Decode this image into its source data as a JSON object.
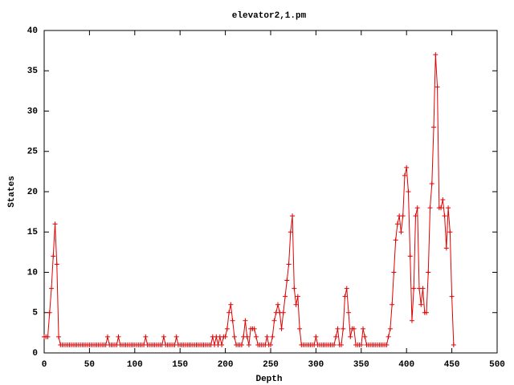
{
  "chart_data": {
    "type": "line",
    "title": "elevator2,1.pm",
    "x_label": "Depth",
    "y_label": "States",
    "x": [
      0,
      2,
      4,
      6,
      8,
      10,
      12,
      14,
      16,
      18,
      20,
      22,
      24,
      26,
      28,
      30,
      32,
      34,
      36,
      38,
      40,
      42,
      44,
      46,
      48,
      50,
      52,
      54,
      56,
      58,
      60,
      62,
      64,
      66,
      68,
      70,
      72,
      74,
      76,
      78,
      80,
      82,
      84,
      86,
      88,
      90,
      92,
      94,
      96,
      98,
      100,
      102,
      104,
      106,
      108,
      110,
      112,
      114,
      116,
      118,
      120,
      122,
      124,
      126,
      128,
      130,
      132,
      134,
      136,
      138,
      140,
      142,
      144,
      146,
      148,
      150,
      152,
      154,
      156,
      158,
      160,
      162,
      164,
      166,
      168,
      170,
      172,
      174,
      176,
      178,
      180,
      182,
      184,
      186,
      188,
      190,
      192,
      194,
      196,
      198,
      200,
      202,
      204,
      206,
      208,
      210,
      212,
      214,
      216,
      218,
      220,
      222,
      224,
      226,
      228,
      230,
      232,
      234,
      236,
      238,
      240,
      242,
      244,
      246,
      248,
      250,
      252,
      254,
      256,
      258,
      260,
      262,
      264,
      266,
      268,
      270,
      272,
      274,
      276,
      278,
      280,
      282,
      284,
      286,
      288,
      290,
      292,
      294,
      296,
      298,
      300,
      302,
      304,
      306,
      308,
      310,
      312,
      314,
      316,
      318,
      320,
      322,
      324,
      326,
      328,
      330,
      332,
      334,
      336,
      338,
      340,
      342,
      344,
      346,
      348,
      350,
      352,
      354,
      356,
      358,
      360,
      362,
      364,
      366,
      368,
      370,
      372,
      374,
      376,
      378,
      380,
      382,
      384,
      386,
      388,
      390,
      392,
      394,
      396,
      398,
      400,
      402,
      404,
      406,
      408,
      410,
      412,
      414,
      416,
      418,
      420,
      422,
      424,
      426,
      428,
      430,
      432,
      434,
      436,
      438,
      440,
      442,
      444,
      446,
      448,
      450,
      452
    ],
    "series": [
      {
        "color": "#e00000",
        "values": [
          2,
          2,
          2,
          5,
          8,
          12,
          16,
          11,
          2,
          1,
          1,
          1,
          1,
          1,
          1,
          1,
          1,
          1,
          1,
          1,
          1,
          1,
          1,
          1,
          1,
          1,
          1,
          1,
          1,
          1,
          1,
          1,
          1,
          1,
          1,
          2,
          1,
          1,
          1,
          1,
          1,
          2,
          1,
          1,
          1,
          1,
          1,
          1,
          1,
          1,
          1,
          1,
          1,
          1,
          1,
          1,
          2,
          1,
          1,
          1,
          1,
          1,
          1,
          1,
          1,
          1,
          2,
          1,
          1,
          1,
          1,
          1,
          1,
          2,
          1,
          1,
          1,
          1,
          1,
          1,
          1,
          1,
          1,
          1,
          1,
          1,
          1,
          1,
          1,
          1,
          1,
          1,
          1,
          2,
          1,
          2,
          1,
          2,
          1,
          2,
          2,
          3,
          5,
          6,
          4,
          2,
          1,
          1,
          1,
          1,
          2,
          4,
          2,
          1,
          3,
          3,
          3,
          2,
          1,
          1,
          1,
          1,
          1,
          2,
          1,
          1,
          2,
          4,
          5,
          6,
          5,
          3,
          5,
          7,
          9,
          11,
          15,
          17,
          8,
          6,
          7,
          3,
          1,
          1,
          1,
          1,
          1,
          1,
          1,
          1,
          2,
          1,
          1,
          1,
          1,
          1,
          1,
          1,
          1,
          1,
          1,
          2,
          3,
          1,
          1,
          3,
          7,
          8,
          5,
          2,
          3,
          3,
          1,
          1,
          1,
          1,
          3,
          2,
          1,
          1,
          1,
          1,
          1,
          1,
          1,
          1,
          1,
          1,
          1,
          1,
          2,
          3,
          6,
          10,
          14,
          16,
          17,
          15,
          17,
          22,
          23,
          20,
          12,
          4,
          8,
          17,
          18,
          8,
          6,
          8,
          5,
          5,
          10,
          18,
          21,
          28,
          37,
          33,
          18,
          18,
          19,
          17,
          13,
          18,
          15,
          7,
          1
        ]
      }
    ],
    "xlim": [
      0,
      500
    ],
    "ylim": [
      0,
      40
    ],
    "xticks": [
      0,
      50,
      100,
      150,
      200,
      250,
      300,
      350,
      400,
      450,
      500
    ],
    "yticks": [
      0,
      5,
      10,
      15,
      20,
      25,
      30,
      35,
      40
    ]
  }
}
